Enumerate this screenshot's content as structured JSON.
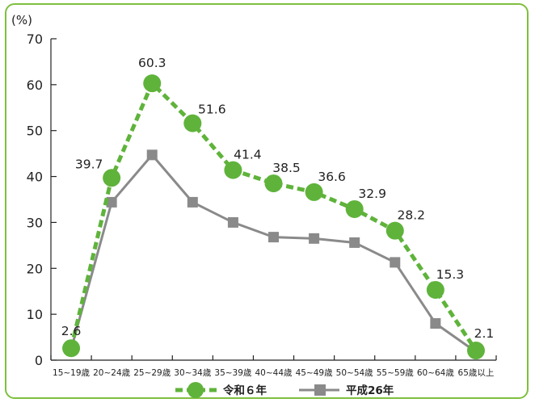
{
  "chart_data": {
    "type": "line",
    "unit": "(%)",
    "categories": [
      "15~19歳",
      "20~24歳",
      "25~29歳",
      "30~34歳",
      "35~39歳",
      "40~44歳",
      "45~49歳",
      "50~54歳",
      "55~59歳",
      "60~64歳",
      "65歳以上"
    ],
    "ylim": [
      0,
      70
    ],
    "yticks": [
      0,
      10,
      20,
      30,
      40,
      50,
      60,
      70
    ],
    "grid": false,
    "legend_position": "bottom-center",
    "series": [
      {
        "name": "令和６年",
        "color": "#5fb33b",
        "marker": "circle",
        "line_style": "dashed",
        "values": [
          2.6,
          39.7,
          60.3,
          51.6,
          41.4,
          38.5,
          36.6,
          32.9,
          28.2,
          15.3,
          2.1
        ],
        "labels": [
          "2.6",
          "39.7",
          "60.3",
          "51.6",
          "41.4",
          "38.5",
          "36.6",
          "32.9",
          "28.2",
          "15.3",
          "2.1"
        ]
      },
      {
        "name": "平成26年",
        "color": "#8a8a8a",
        "marker": "square",
        "line_style": "solid",
        "values": [
          2.4,
          34.4,
          44.7,
          34.4,
          30.0,
          26.8,
          26.5,
          25.6,
          21.3,
          8.0,
          1.8
        ]
      }
    ]
  }
}
